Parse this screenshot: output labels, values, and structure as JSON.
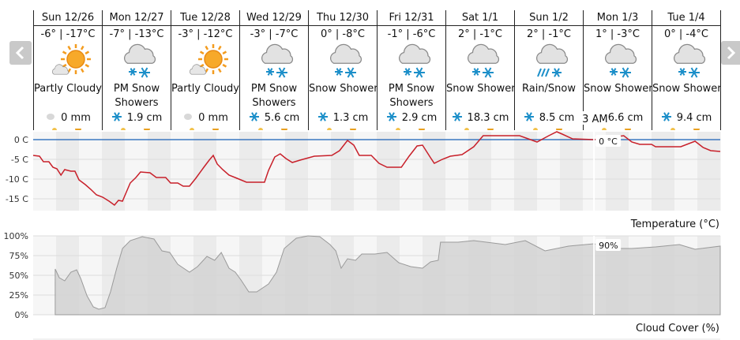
{
  "days": [
    {
      "date": "Sun 12/26",
      "temps": "-6° | -17°C",
      "condition": "Partly Cloudy",
      "precip": "0 mm"
    },
    {
      "date": "Mon 12/27",
      "temps": "-7° | -13°C",
      "condition": "PM Snow Showers",
      "precip": "1.9 cm"
    },
    {
      "date": "Tue 12/28",
      "temps": "-3° | -12°C",
      "condition": "Partly Cloudy",
      "precip": "0 mm"
    },
    {
      "date": "Wed 12/29",
      "temps": "-3° | -7°C",
      "condition": "PM Snow Showers",
      "precip": "5.6 cm"
    },
    {
      "date": "Thu 12/30",
      "temps": "0° | -8°C",
      "condition": "Snow Showers",
      "precip": "1.3 cm"
    },
    {
      "date": "Fri 12/31",
      "temps": "-1° | -6°C",
      "condition": "PM Snow Showers",
      "precip": "2.9 cm"
    },
    {
      "date": "Sat 1/1",
      "temps": "2° | -1°C",
      "condition": "Snow Showers",
      "precip": "18.3 cm"
    },
    {
      "date": "Sun 1/2",
      "temps": "2° | -1°C",
      "condition": "Rain/Snow",
      "precip": "8.5 cm"
    },
    {
      "date": "Mon 1/3",
      "temps": "1° | -3°C",
      "condition": "Snow Showers",
      "precip": "6.6 cm"
    },
    {
      "date": "Tue 1/4",
      "temps": "0° | -4°C",
      "condition": "Snow Showers",
      "precip": "9.4 cm"
    }
  ],
  "cursor": {
    "x": 195.9,
    "label": "3 AM"
  },
  "chart_data": [
    {
      "type": "line",
      "title": "Temperature (°C)",
      "color": "#c8202a",
      "x": [
        0,
        2.2,
        3.6,
        5.5,
        6.9,
        8.3,
        9.7,
        11,
        13.2,
        14.6,
        16,
        18.2,
        20.1,
        22.1,
        24.3,
        26.5,
        28.4,
        29.8,
        31.2,
        32.6,
        33.9,
        35.9,
        37.5,
        40.8,
        43,
        46.3,
        48,
        50.5,
        52.4,
        54.6,
        56.8,
        59.6,
        61.5,
        62.9,
        64.3,
        66.2,
        68.4,
        71.2,
        74.5,
        80.8,
        82.2,
        84.4,
        86.3,
        88.3,
        90.5,
        93.2,
        98.2,
        104.3,
        107,
        109.8,
        112,
        113.9,
        118.1,
        120.8,
        123.6,
        128.6,
        131.3,
        134.1,
        136,
        138.8,
        140.1,
        142.9,
        145.7,
        149.8,
        153.9,
        157.2,
        169.9,
        176,
        180.1,
        182.9,
        184.8,
        188.4,
        195.9,
        206.3,
        209.1,
        211.9,
        216,
        217.4,
        226.2,
        231.2,
        234,
        236.7,
        240
      ],
      "values": [
        -4,
        -4.2,
        -5.6,
        -5.6,
        -7,
        -7.4,
        -9,
        -7.6,
        -8,
        -8,
        -10.2,
        -11.4,
        -12.6,
        -14,
        -14.6,
        -15.6,
        -16.6,
        -15.4,
        -15.6,
        -13.2,
        -11,
        -9.6,
        -8.2,
        -8.4,
        -9.6,
        -9.6,
        -11,
        -11,
        -11.8,
        -11.8,
        -9.8,
        -7,
        -5.2,
        -4,
        -6.2,
        -7.6,
        -9,
        -9.8,
        -10.8,
        -10.8,
        -7.8,
        -4.4,
        -3.6,
        -4.8,
        -5.8,
        -5.2,
        -4.2,
        -4,
        -2.8,
        -0.2,
        -1.4,
        -4,
        -4,
        -6,
        -7,
        -7,
        -4.2,
        -1.6,
        -1.4,
        -4.6,
        -6,
        -5,
        -4.2,
        -3.8,
        -1.8,
        1,
        1,
        -0.6,
        1,
        2,
        1.4,
        0.2,
        0,
        1,
        -0.6,
        -1.2,
        -1.2,
        -1.8,
        -1.8,
        -0.4,
        -2,
        -2.8,
        -3
      ],
      "xlim": [
        0,
        240
      ],
      "ylim": [
        -18,
        2
      ],
      "yticks": [
        {
          "value": 0,
          "label": "0 C"
        },
        {
          "value": -5,
          "label": "-5 C"
        },
        {
          "value": -10,
          "label": "-10 C"
        },
        {
          "value": -15,
          "label": "-15 C"
        }
      ],
      "reference_line": {
        "value": 0,
        "color": "#3c78c0"
      },
      "cursor_label": "0 °C"
    },
    {
      "type": "area",
      "title": "Cloud Cover (%)",
      "color": "#d4d4d4",
      "line_color": "#9a9a9a",
      "x": [
        7.7,
        9.1,
        11,
        13.2,
        15.2,
        16.6,
        18.8,
        21,
        22.9,
        25.1,
        27,
        29.2,
        31.2,
        33.9,
        38.1,
        42.2,
        45,
        47.7,
        50.5,
        54.6,
        57.4,
        60.7,
        63.4,
        65.7,
        68.4,
        70.6,
        72.6,
        75.3,
        78.1,
        82.2,
        85,
        87.7,
        91.9,
        96,
        100.1,
        103.7,
        105.7,
        107.6,
        109.8,
        112.6,
        114.8,
        119.4,
        123.6,
        127.7,
        131.9,
        136,
        138.8,
        141.5,
        142.3,
        148.4,
        153.9,
        164.9,
        171.9,
        178.8,
        187,
        195.9,
        203.6,
        209.1,
        217.4,
        225.7,
        231.2,
        240
      ],
      "values": [
        58,
        47,
        43,
        54,
        57,
        46,
        24,
        10,
        7,
        9,
        29,
        59,
        84,
        94,
        99,
        96,
        81,
        79,
        64,
        54,
        61,
        74,
        69,
        79,
        59,
        54,
        44,
        29,
        29,
        39,
        54,
        84,
        97,
        100,
        99,
        89,
        81,
        59,
        71,
        69,
        77,
        77,
        79,
        66,
        61,
        59,
        67,
        69,
        92,
        92,
        94,
        89,
        94,
        81,
        87,
        90,
        84,
        84,
        86,
        89,
        83,
        87
      ],
      "xlim": [
        0,
        240
      ],
      "ylim": [
        0,
        100
      ],
      "yticks": [
        {
          "value": 100,
          "label": "100%"
        },
        {
          "value": 75,
          "label": "75%"
        },
        {
          "value": 50,
          "label": "50%"
        },
        {
          "value": 25,
          "label": "25%"
        },
        {
          "value": 0,
          "label": "0%"
        }
      ],
      "cursor_label": "90%"
    }
  ]
}
